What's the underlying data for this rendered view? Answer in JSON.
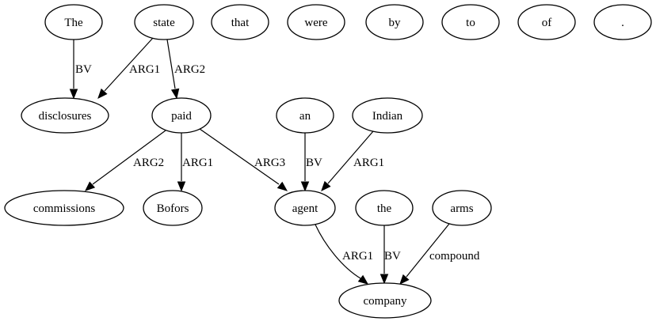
{
  "graph": {
    "nodes": [
      {
        "id": "n_the_cap",
        "label": "The"
      },
      {
        "id": "n_state",
        "label": "state"
      },
      {
        "id": "n_that",
        "label": "that"
      },
      {
        "id": "n_were",
        "label": "were"
      },
      {
        "id": "n_by",
        "label": "by"
      },
      {
        "id": "n_to",
        "label": "to"
      },
      {
        "id": "n_of",
        "label": "of"
      },
      {
        "id": "n_period",
        "label": "."
      },
      {
        "id": "n_disclosures",
        "label": "disclosures"
      },
      {
        "id": "n_paid",
        "label": "paid"
      },
      {
        "id": "n_an",
        "label": "an"
      },
      {
        "id": "n_indian",
        "label": "Indian"
      },
      {
        "id": "n_commissions",
        "label": "commissions"
      },
      {
        "id": "n_bofors",
        "label": "Bofors"
      },
      {
        "id": "n_agent",
        "label": "agent"
      },
      {
        "id": "n_the",
        "label": "the"
      },
      {
        "id": "n_arms",
        "label": "arms"
      },
      {
        "id": "n_company",
        "label": "company"
      }
    ],
    "edges": [
      {
        "id": "e_the_disclosures",
        "from": "n_the_cap",
        "to": "n_disclosures",
        "label": "BV"
      },
      {
        "id": "e_state_disclosures",
        "from": "n_state",
        "to": "n_disclosures",
        "label": "ARG1"
      },
      {
        "id": "e_state_paid",
        "from": "n_state",
        "to": "n_paid",
        "label": "ARG2"
      },
      {
        "id": "e_paid_commissions",
        "from": "n_paid",
        "to": "n_commissions",
        "label": "ARG2"
      },
      {
        "id": "e_paid_bofors",
        "from": "n_paid",
        "to": "n_bofors",
        "label": "ARG1"
      },
      {
        "id": "e_paid_agent",
        "from": "n_paid",
        "to": "n_agent",
        "label": "ARG3"
      },
      {
        "id": "e_an_agent",
        "from": "n_an",
        "to": "n_agent",
        "label": "BV"
      },
      {
        "id": "e_indian_agent",
        "from": "n_indian",
        "to": "n_agent",
        "label": "ARG1"
      },
      {
        "id": "e_agent_company",
        "from": "n_agent",
        "to": "n_company",
        "label": "ARG1"
      },
      {
        "id": "e_the_company",
        "from": "n_the",
        "to": "n_company",
        "label": "BV"
      },
      {
        "id": "e_arms_company",
        "from": "n_arms",
        "to": "n_company",
        "label": "compound"
      }
    ]
  }
}
